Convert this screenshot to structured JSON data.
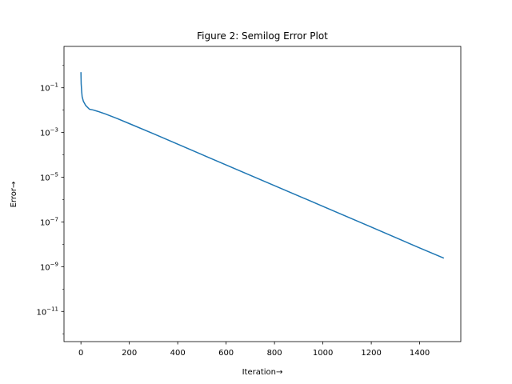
{
  "chart_data": {
    "type": "line",
    "title": "Figure 2: Semilog Error Plot",
    "xlabel": "Iteration→",
    "ylabel": "Error→",
    "xlim": [
      -70,
      1570
    ],
    "ylim_log10": [
      -12.35,
      0.85
    ],
    "yscale": "log",
    "grid": false,
    "line_color": "#1f77b4",
    "x_ticks": [
      {
        "value": 0,
        "label": "0"
      },
      {
        "value": 200,
        "label": "200"
      },
      {
        "value": 400,
        "label": "400"
      },
      {
        "value": 600,
        "label": "600"
      },
      {
        "value": 800,
        "label": "800"
      },
      {
        "value": 1000,
        "label": "1000"
      },
      {
        "value": 1200,
        "label": "1200"
      },
      {
        "value": 1400,
        "label": "1400"
      }
    ],
    "y_ticks": [
      {
        "exp": -1,
        "base": "10",
        "sup": "−1"
      },
      {
        "exp": -3,
        "base": "10",
        "sup": "−3"
      },
      {
        "exp": -5,
        "base": "10",
        "sup": "−5"
      },
      {
        "exp": -7,
        "base": "10",
        "sup": "−7"
      },
      {
        "exp": -9,
        "base": "10",
        "sup": "−9"
      },
      {
        "exp": -11,
        "base": "10",
        "sup": "−11"
      }
    ],
    "series": [
      {
        "x": [
          0,
          1,
          3,
          5,
          10,
          20,
          35,
          50,
          70,
          100,
          150,
          200,
          300,
          400,
          600,
          800,
          1000,
          1200,
          1400,
          1500
        ],
        "y": [
          0.5,
          0.15,
          0.07,
          0.04,
          0.025,
          0.016,
          0.011,
          0.0102,
          0.0088,
          0.0068,
          0.0042,
          0.0025,
          0.00088,
          0.0003,
          3.55e-05,
          4.2e-06,
          5e-07,
          5.9e-08,
          6.9e-09,
          2.4e-09
        ]
      }
    ]
  }
}
